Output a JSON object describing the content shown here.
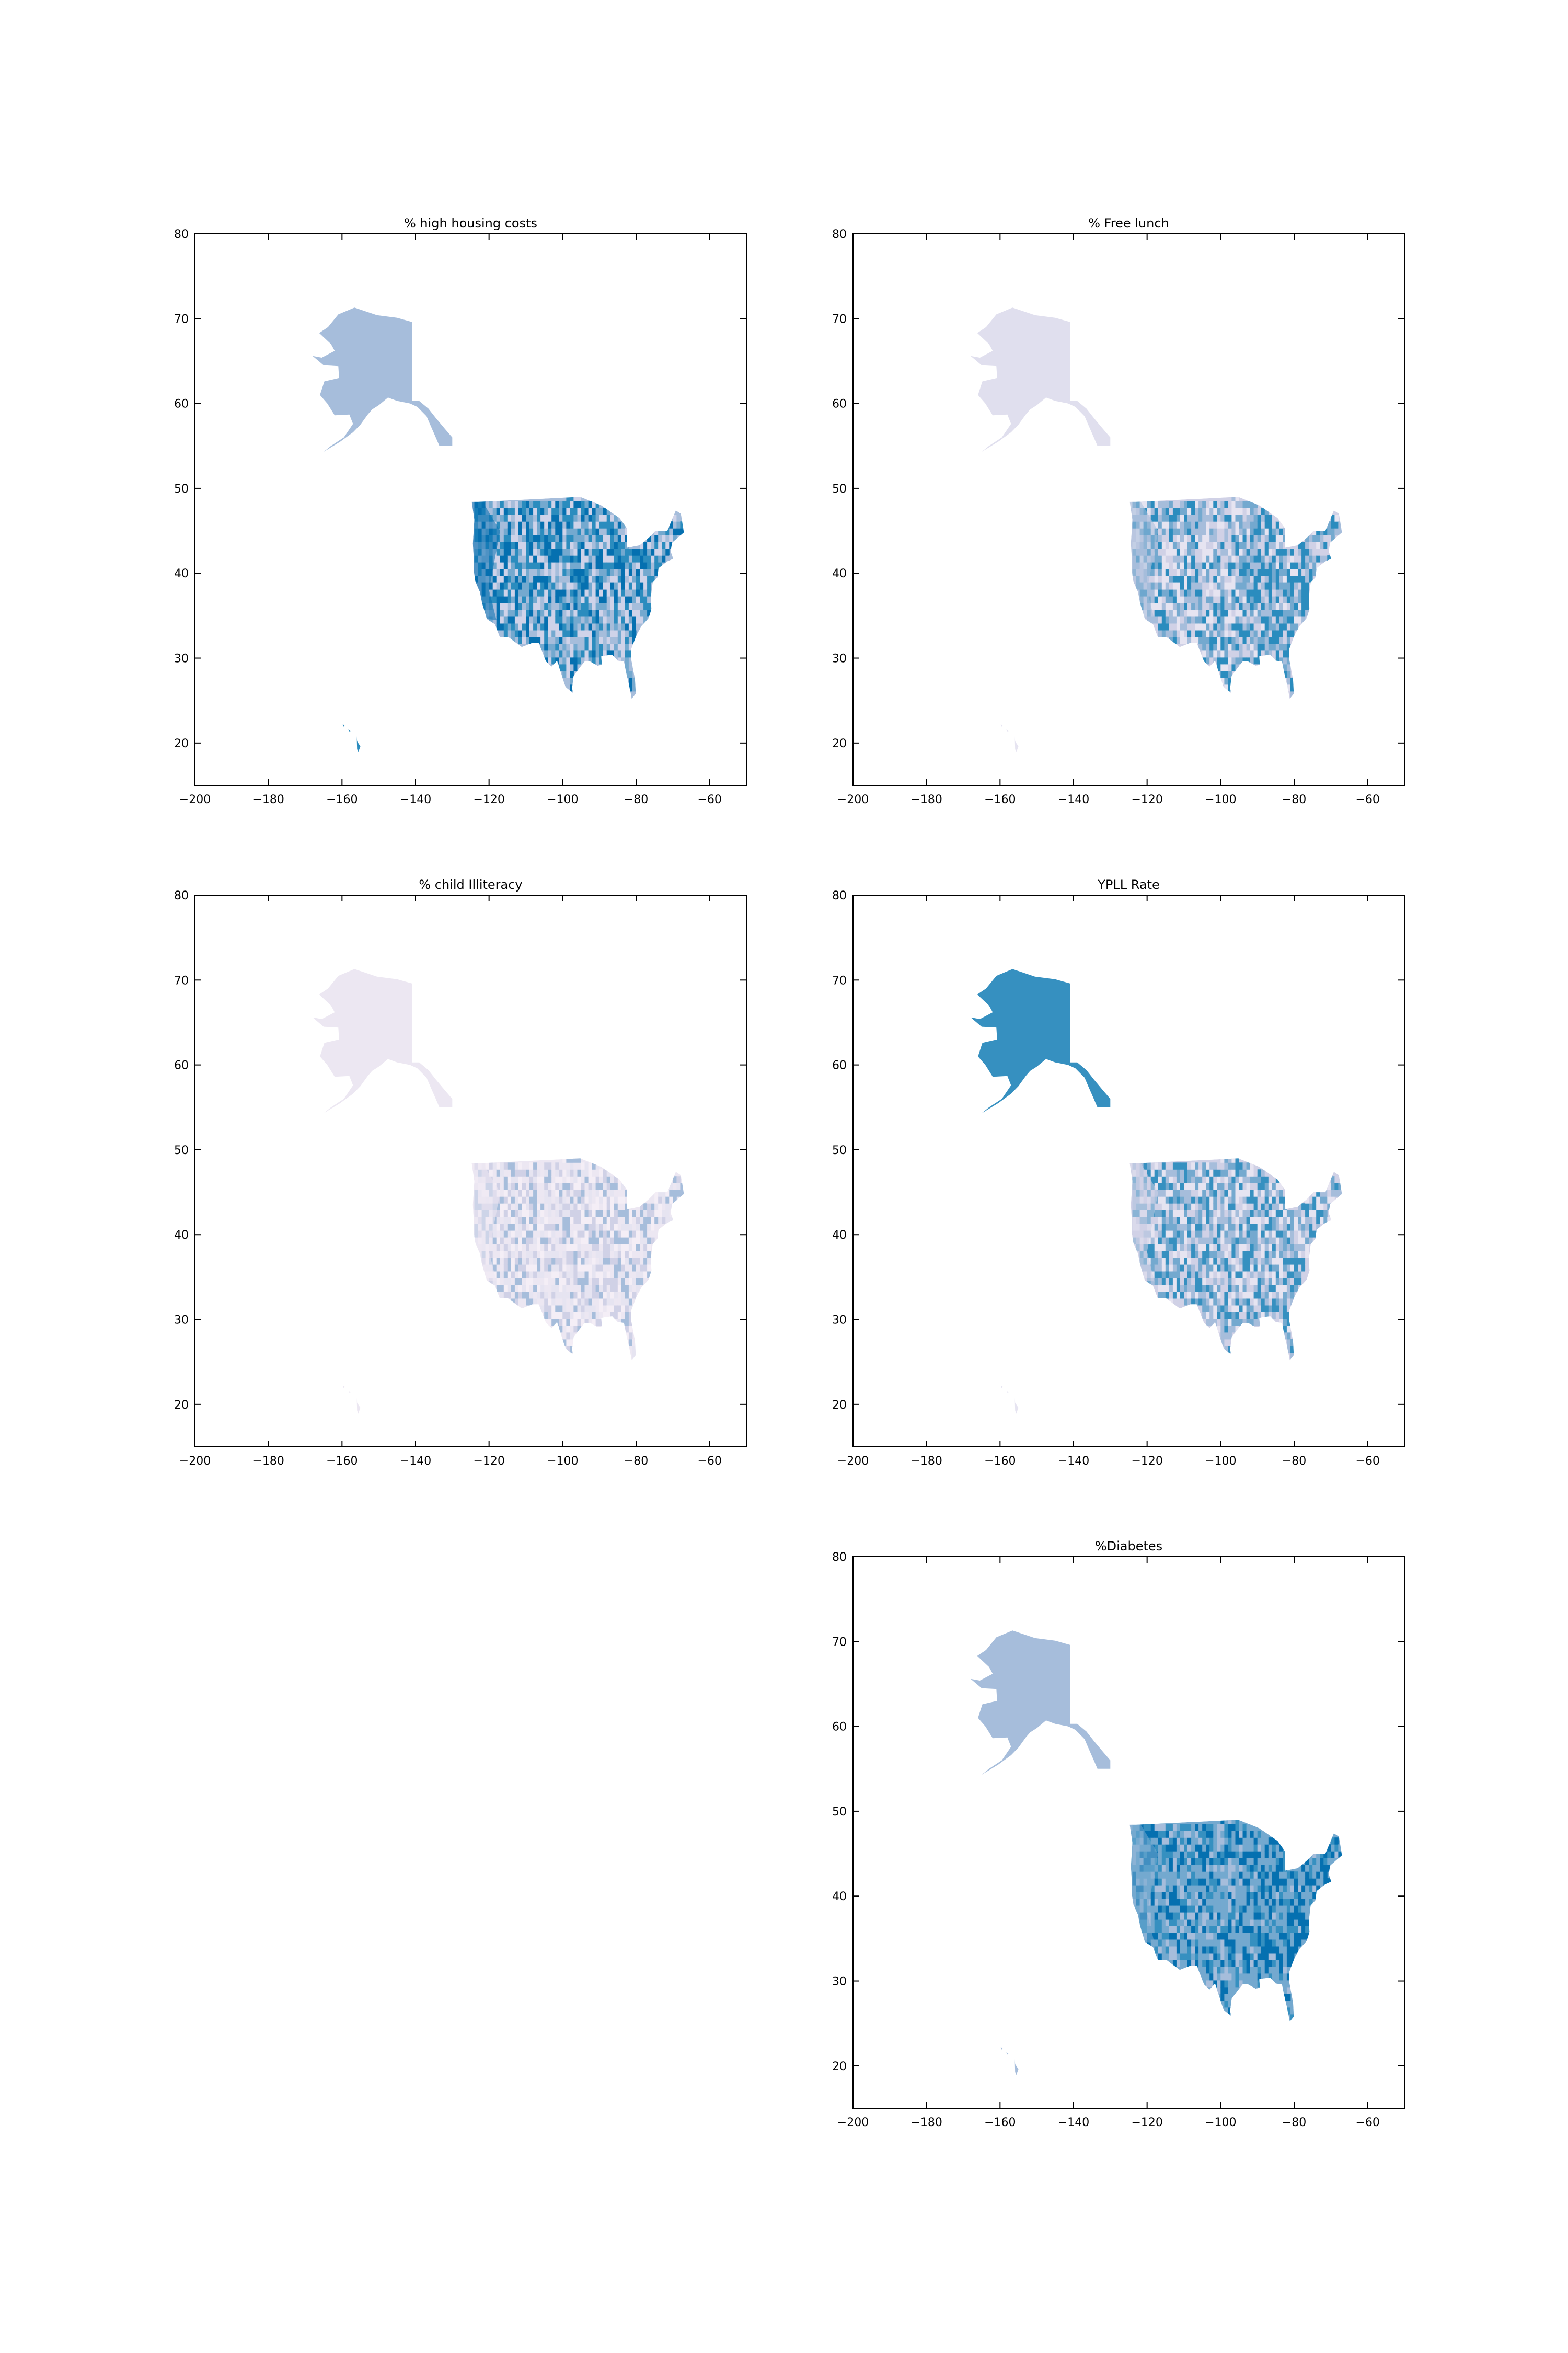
{
  "figure": {
    "panels": [
      {
        "id": "housing",
        "title": "% high housing costs",
        "row": 0,
        "col": 0,
        "colors": [
          "#cfd3e9",
          "#a6bddb",
          "#74a9cf",
          "#2b8cbe",
          "#0570b0"
        ],
        "alaska_fill": "#a6bddb",
        "hawaii_fill": "#2b8cbe",
        "coast_fill": "#0570b0"
      },
      {
        "id": "lunch",
        "title": "% Free lunch",
        "row": 0,
        "col": 1,
        "colors": [
          "#e6e4f1",
          "#d0d1e6",
          "#a6bddb",
          "#74a9cf",
          "#2b8cbe"
        ],
        "alaska_fill": "#e0dfee",
        "hawaii_fill": "#e6e4f1",
        "coast_fill": "#a6bddb"
      },
      {
        "id": "illit",
        "title": "% child Illiteracy",
        "row": 1,
        "col": 0,
        "colors": [
          "#f4eef6",
          "#ece7f2",
          "#e6e4f1",
          "#d0d1e6",
          "#a6bddb"
        ],
        "alaska_fill": "#ece7f2",
        "hawaii_fill": "#ece7f2",
        "coast_fill": "#ece7f2"
      },
      {
        "id": "ypll",
        "title": "YPLL Rate",
        "row": 1,
        "col": 1,
        "colors": [
          "#e6e4f1",
          "#d0d1e6",
          "#a6bddb",
          "#74a9cf",
          "#3690c0"
        ],
        "alaska_fill": "#3690c0",
        "hawaii_fill": "#e6e4f1",
        "coast_fill": "#d0d1e6"
      },
      {
        "id": "diabetes",
        "title": "%Diabetes",
        "row": 2,
        "col": 1,
        "colors": [
          "#a6bddb",
          "#74a9cf",
          "#74a9cf",
          "#3690c0",
          "#0570b0"
        ],
        "alaska_fill": "#a6bddb",
        "hawaii_fill": "#a6bddb",
        "coast_fill": "#74a9cf"
      }
    ],
    "x_ticks": [
      "−200",
      "−180",
      "−160",
      "−140",
      "−120",
      "−100",
      "−80",
      "−60"
    ],
    "y_ticks": [
      "20",
      "30",
      "40",
      "50",
      "60",
      "70",
      "80"
    ],
    "xlim": [
      -200,
      -50
    ],
    "ylim": [
      15,
      80
    ]
  }
}
